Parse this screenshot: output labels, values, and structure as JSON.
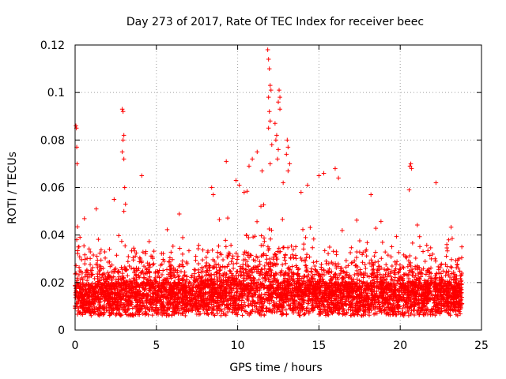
{
  "chart_data": {
    "type": "scatter",
    "title": "Day 273 of 2017, Rate Of TEC Index for receiver beec",
    "xlabel": "GPS time / hours",
    "ylabel": "ROTI / TECUs",
    "xlim": [
      0,
      25
    ],
    "ylim": [
      0,
      0.12
    ],
    "x_ticks": [
      0,
      5,
      10,
      15,
      20,
      25
    ],
    "x_tick_labels": [
      "0",
      "5",
      "10",
      "15",
      "20",
      "25"
    ],
    "y_ticks": [
      0,
      0.02,
      0.04,
      0.06,
      0.08,
      0.1,
      0.12
    ],
    "y_tick_labels": [
      "0",
      "0.02",
      "0.04",
      "0.06",
      "0.08",
      "0.1",
      "0.12"
    ],
    "grid": true,
    "marker": "+",
    "colors": {
      "points": "#ff0000",
      "axes": "#000000",
      "grid": "#a0a0a0"
    },
    "series": [
      {
        "name": "ROTI",
        "points": [
          [
            0.05,
            0.086
          ],
          [
            0.08,
            0.085
          ],
          [
            0.1,
            0.077
          ],
          [
            0.12,
            0.07
          ],
          [
            0.1,
            0.038
          ],
          [
            0.2,
            0.035
          ],
          [
            0.3,
            0.039
          ],
          [
            2.9,
            0.093
          ],
          [
            2.95,
            0.092
          ],
          [
            3.0,
            0.082
          ],
          [
            2.95,
            0.08
          ],
          [
            2.9,
            0.075
          ],
          [
            3.0,
            0.072
          ],
          [
            3.05,
            0.06
          ],
          [
            3.1,
            0.053
          ],
          [
            3.0,
            0.05
          ],
          [
            4.1,
            0.065
          ],
          [
            2.4,
            0.055
          ],
          [
            1.3,
            0.051
          ],
          [
            9.3,
            0.071
          ],
          [
            10.9,
            0.072
          ],
          [
            11.2,
            0.075
          ],
          [
            10.7,
            0.069
          ],
          [
            11.5,
            0.067
          ],
          [
            11.85,
            0.118
          ],
          [
            11.9,
            0.114
          ],
          [
            11.95,
            0.11
          ],
          [
            12.0,
            0.103
          ],
          [
            12.05,
            0.101
          ],
          [
            11.9,
            0.098
          ],
          [
            11.95,
            0.092
          ],
          [
            12.0,
            0.088
          ],
          [
            11.9,
            0.085
          ],
          [
            12.1,
            0.078
          ],
          [
            12.0,
            0.07
          ],
          [
            12.55,
            0.101
          ],
          [
            12.6,
            0.098
          ],
          [
            12.5,
            0.096
          ],
          [
            12.6,
            0.093
          ],
          [
            12.3,
            0.087
          ],
          [
            12.4,
            0.082
          ],
          [
            12.35,
            0.08
          ],
          [
            12.5,
            0.076
          ],
          [
            12.45,
            0.072
          ],
          [
            13.05,
            0.08
          ],
          [
            13.1,
            0.077
          ],
          [
            13.0,
            0.074
          ],
          [
            13.2,
            0.07
          ],
          [
            13.1,
            0.067
          ],
          [
            14.3,
            0.061
          ],
          [
            15.0,
            0.065
          ],
          [
            15.3,
            0.066
          ],
          [
            16.0,
            0.068
          ],
          [
            16.2,
            0.064
          ],
          [
            18.2,
            0.057
          ],
          [
            20.6,
            0.069
          ],
          [
            20.65,
            0.07
          ],
          [
            20.7,
            0.068
          ],
          [
            20.55,
            0.059
          ],
          [
            22.2,
            0.062
          ],
          [
            8.4,
            0.06
          ],
          [
            8.5,
            0.057
          ],
          [
            9.9,
            0.063
          ],
          [
            10.1,
            0.061
          ],
          [
            10.4,
            0.058
          ],
          [
            12.8,
            0.062
          ],
          [
            13.9,
            0.058
          ]
        ]
      }
    ]
  }
}
